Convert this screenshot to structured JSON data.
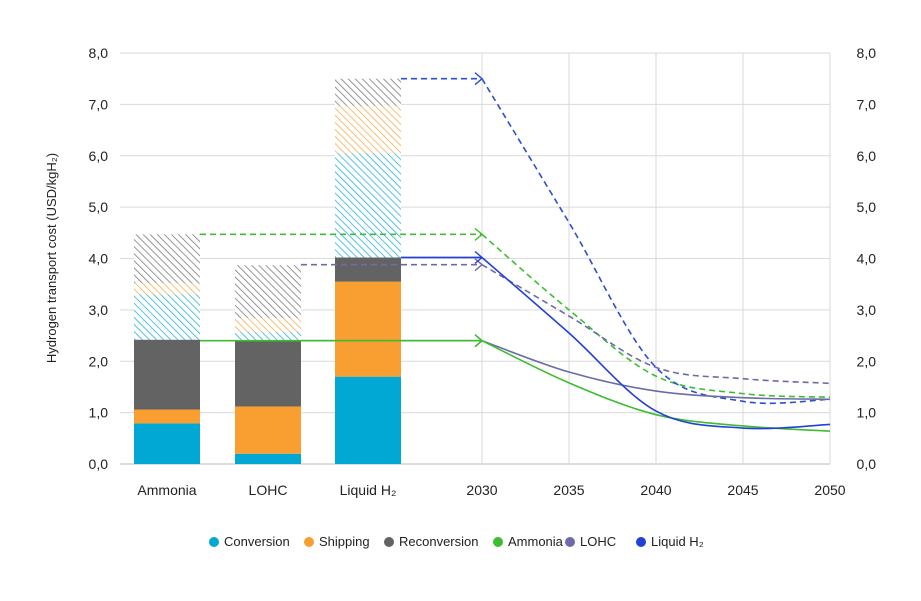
{
  "chart_data": {
    "type": "bar+line",
    "ylabel": "Hydrogen transport cost (USD/kgH₂)",
    "ylim": [
      0,
      8
    ],
    "yticks": [
      "0,0",
      "1,0",
      "2,0",
      "3,0",
      "4,0",
      "5,0",
      "6,0",
      "7,0",
      "8,0"
    ],
    "grid": true,
    "legend_position": "bottom",
    "bar_categories": [
      "Ammonia",
      "LOHC",
      "Liquid H₂"
    ],
    "bar_stacks": [
      {
        "name": "Conversion",
        "values": [
          0.79,
          0.2,
          1.7
        ],
        "color": "#00a8d3",
        "hatched": false
      },
      {
        "name": "Shipping",
        "values": [
          0.27,
          0.92,
          1.85
        ],
        "color": "#f99f31",
        "hatched": false
      },
      {
        "name": "Reconversion",
        "values": [
          1.36,
          1.28,
          0.47
        ],
        "color": "#636363",
        "hatched": false
      },
      {
        "name": "Conversion",
        "values": [
          0.88,
          0.17,
          2.03
        ],
        "color": "#00a8d3",
        "hatched": true
      },
      {
        "name": "Shipping",
        "values": [
          0.22,
          0.27,
          0.92
        ],
        "color": "#f99f31",
        "hatched": true
      },
      {
        "name": "Reconversion",
        "values": [
          0.95,
          1.03,
          0.53
        ],
        "color": "#636363",
        "hatched": true
      }
    ],
    "years": [
      "2030",
      "2035",
      "2040",
      "2045",
      "2050"
    ],
    "lines": [
      {
        "name": "Ammonia",
        "style": "dashed",
        "color": "#3dbd2f",
        "from_bar": 0,
        "values": [
          4.47,
          3.0,
          1.71,
          1.37,
          1.3
        ]
      },
      {
        "name": "LOHC",
        "style": "dashed",
        "color": "#6b6ba9",
        "from_bar": 1,
        "values": [
          3.88,
          2.88,
          1.88,
          1.66,
          1.57
        ]
      },
      {
        "name": "Liquid H₂",
        "style": "dashed",
        "color": "#2b4fd1",
        "from_bar": 2,
        "values": [
          7.5,
          4.7,
          1.88,
          1.22,
          1.26
        ]
      },
      {
        "name": "LOHC",
        "style": "solid",
        "color": "#6b6ba9",
        "from_bar": 1,
        "values": [
          2.4,
          1.79,
          1.42,
          1.29,
          1.26
        ]
      },
      {
        "name": "Ammonia",
        "style": "solid",
        "color": "#3dbd2f",
        "from_bar": 0,
        "values": [
          2.4,
          1.58,
          0.96,
          0.74,
          0.64
        ]
      },
      {
        "name": "Liquid H₂",
        "style": "solid",
        "color": "#2340d8",
        "from_bar": 2,
        "values": [
          4.02,
          2.55,
          1.03,
          0.7,
          0.77
        ]
      }
    ],
    "legend": [
      {
        "label": "Conversion",
        "color": "#00a8d3"
      },
      {
        "label": "Shipping",
        "color": "#f99f31"
      },
      {
        "label": "Reconversion",
        "color": "#636363"
      },
      {
        "label": "Ammonia",
        "color": "#3dbd2f"
      },
      {
        "label": "LOHC",
        "color": "#6b6ba9"
      },
      {
        "label": "Liquid H₂",
        "color": "#2340d8"
      }
    ]
  }
}
